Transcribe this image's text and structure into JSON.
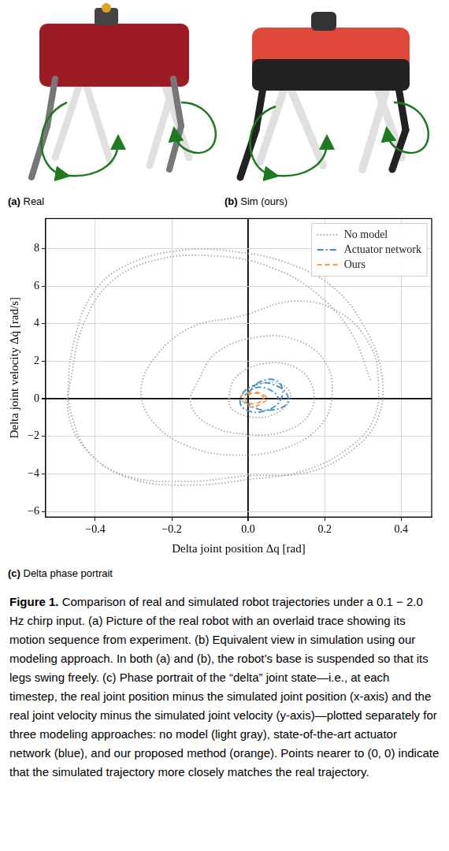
{
  "panels": [
    {
      "letter": "(a)",
      "title": "Real"
    },
    {
      "letter": "(b)",
      "title": "Sim (ours)"
    },
    {
      "letter": "(c)",
      "title": "Delta phase portrait"
    }
  ],
  "chart_data": {
    "type": "scatter",
    "x_label": "Delta joint position Δq [rad]",
    "y_label": "Delta joint velocity Δq̇ [rad/s]",
    "xlim": [
      -0.53,
      0.48
    ],
    "xticks": [
      {
        "value": -0.4,
        "label": "−0.4"
      },
      {
        "value": -0.2,
        "label": "−0.2"
      },
      {
        "value": 0,
        "label": "0.0"
      },
      {
        "value": 0.2,
        "label": "0.2"
      },
      {
        "value": 0.4,
        "label": "0.4"
      }
    ],
    "ylim": [
      -6.3,
      9.6
    ],
    "yticks": [
      {
        "value": -6,
        "label": "−6"
      },
      {
        "value": -4,
        "label": "−4"
      },
      {
        "value": -2,
        "label": "−2"
      },
      0,
      2,
      4,
      6,
      8
    ],
    "grid": true,
    "legend": "top-right",
    "series": [
      {
        "name": "No model",
        "color": "#a9a9a9",
        "line_style": "dotted",
        "x": [
          0,
          0.05,
          0.1,
          0.11,
          0.08,
          0.02,
          -0.04,
          -0.05,
          -0.03,
          0.05,
          0.13,
          0.17,
          0.16,
          0.1,
          0,
          -0.1,
          -0.15,
          -0.13,
          -0.08,
          0.03,
          0.13,
          0.2,
          0.22,
          0.19,
          0.1,
          -0.03,
          -0.16,
          -0.25,
          -0.28,
          -0.24,
          -0.15,
          -0.02,
          0.12,
          0.24,
          0.32,
          0.34,
          0.33,
          0.27,
          0.15,
          0,
          -0.15,
          -0.3,
          -0.41,
          -0.46,
          -0.47,
          -0.45,
          -0.41,
          -0.33,
          -0.18,
          -0.02,
          0.12,
          0.23,
          0.31,
          0.35,
          0.34,
          0.28,
          0.16,
          0,
          -0.16,
          -0.32,
          -0.42,
          -0.47,
          -0.46,
          -0.43,
          -0.36,
          -0.24,
          -0.08,
          0.06,
          0.18,
          0.27,
          0.32
        ],
        "values": [
          0.5,
          0.9,
          0.6,
          0,
          -0.7,
          -1,
          -0.6,
          0,
          1.2,
          1.9,
          1.6,
          0.5,
          -0.8,
          -1.7,
          -1.9,
          -1.4,
          -0.3,
          1,
          2.5,
          3.3,
          3.1,
          2,
          0.3,
          -1.4,
          -2.6,
          -3,
          -2.5,
          -1.2,
          0.5,
          2.3,
          3.8,
          4.4,
          5.2,
          4.6,
          2.8,
          1,
          -1,
          -2.5,
          -3.8,
          -4.3,
          -4.6,
          -4.3,
          -3,
          -1,
          1,
          3.5,
          5.5,
          7,
          7.9,
          7.8,
          7.1,
          5.8,
          3.6,
          1.2,
          -1,
          -2.6,
          -3.9,
          -4.1,
          -4.4,
          -4.1,
          -2.8,
          -0.8,
          1.5,
          4,
          6.2,
          7.4,
          7.6,
          7,
          5.6,
          3.5,
          1
        ]
      },
      {
        "name": "Actuator network",
        "color": "#3d8fc6",
        "line_style": "dashdot",
        "x": [
          0,
          0.03,
          0.07,
          0.09,
          0.08,
          0.05,
          0.01,
          -0.02,
          -0.01,
          0.03,
          0.06,
          0.1,
          0.1,
          0.06,
          0.02,
          -0.01,
          0.01,
          0.04,
          0.07,
          0.08
        ],
        "values": [
          0.3,
          0.9,
          1,
          0.5,
          -0.2,
          -0.6,
          -0.7,
          -0.3,
          0.4,
          0.8,
          0.8,
          0.3,
          -0.3,
          -0.6,
          -0.5,
          0,
          0.5,
          0.6,
          0.3,
          0
        ]
      },
      {
        "name": "Ours",
        "color": "#f39c4f",
        "line_style": "dashed",
        "x": [
          0,
          0.02,
          0.04,
          0.05,
          0.03,
          0.01,
          -0.01,
          -0.02,
          0,
          0.03,
          0.04,
          0.02,
          0,
          -0.01
        ],
        "values": [
          0.2,
          0.35,
          0.2,
          0,
          -0.3,
          -0.45,
          -0.2,
          0.1,
          0.3,
          0.25,
          0,
          -0.25,
          -0.2,
          0.05
        ]
      }
    ]
  },
  "caption": {
    "label": "Figure 1.",
    "text": "Comparison of real and simulated robot trajectories under a 0.1 − 2.0 Hz chirp input. (a) Picture of the real robot with an overlaid trace showing its motion sequence from experiment. (b) Equivalent view in simulation using our modeling approach. In both (a) and (b), the robot’s base is suspended so that its legs swing freely. (c) Phase portrait of the “delta” joint state—i.e., at each timestep, the real joint position minus the simulated joint position (x-axis) and the real joint velocity minus the simulated joint velocity (y-axis)—plotted separately for three modeling approaches: no model (light gray), state-of-the-art actuator network (blue), and our proposed method (orange). Points nearer to (0, 0) indicate that the simulated trajectory more closely matches the real trajectory."
  }
}
